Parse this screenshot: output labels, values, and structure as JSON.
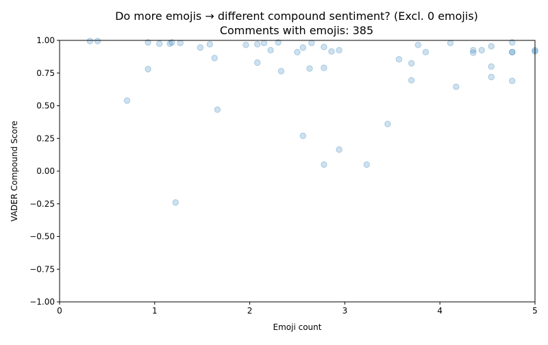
{
  "chart_data": {
    "type": "scatter",
    "title": "Do more emojis → different compound sentiment? (Excl. 0 emojis)",
    "subtitle": "Comments with emojis: 385",
    "xlabel": "Emoji count",
    "ylabel": "VADER Compound Score",
    "xlim": [
      0,
      5
    ],
    "ylim": [
      -1.0,
      1.0
    ],
    "grid": false,
    "x_ticks": [
      "0",
      "1",
      "2",
      "3",
      "4",
      "5"
    ],
    "y_ticks": [
      "−1.00",
      "−0.75",
      "−0.50",
      "−0.25",
      "0.00",
      "0.25",
      "0.50",
      "0.75",
      "1.00"
    ],
    "point_color": "#1f77b4",
    "points": [
      [
        0.32,
        0.995
      ],
      [
        0.4,
        0.995
      ],
      [
        0.71,
        0.54
      ],
      [
        0.93,
        0.985
      ],
      [
        0.93,
        0.78
      ],
      [
        1.05,
        0.975
      ],
      [
        1.16,
        0.975
      ],
      [
        1.18,
        0.985
      ],
      [
        1.22,
        -0.24
      ],
      [
        1.27,
        0.98
      ],
      [
        1.48,
        0.945
      ],
      [
        1.58,
        0.97
      ],
      [
        1.63,
        0.865
      ],
      [
        1.66,
        0.47
      ],
      [
        1.96,
        0.965
      ],
      [
        2.08,
        0.97
      ],
      [
        2.08,
        0.83
      ],
      [
        2.15,
        0.98
      ],
      [
        2.22,
        0.925
      ],
      [
        2.3,
        0.985
      ],
      [
        2.33,
        0.765
      ],
      [
        2.5,
        0.91
      ],
      [
        2.56,
        0.945
      ],
      [
        2.56,
        0.27
      ],
      [
        2.63,
        0.785
      ],
      [
        2.65,
        0.98
      ],
      [
        2.78,
        0.95
      ],
      [
        2.78,
        0.79
      ],
      [
        2.78,
        0.05
      ],
      [
        2.86,
        0.915
      ],
      [
        2.94,
        0.925
      ],
      [
        2.94,
        0.165
      ],
      [
        3.23,
        0.05
      ],
      [
        3.45,
        0.36
      ],
      [
        3.57,
        0.855
      ],
      [
        3.7,
        0.825
      ],
      [
        3.7,
        0.695
      ],
      [
        3.77,
        0.965
      ],
      [
        3.85,
        0.91
      ],
      [
        4.11,
        0.98
      ],
      [
        4.17,
        0.645
      ],
      [
        4.35,
        0.925
      ],
      [
        4.35,
        0.905
      ],
      [
        4.44,
        0.925
      ],
      [
        4.54,
        0.955
      ],
      [
        4.54,
        0.8
      ],
      [
        4.54,
        0.72
      ],
      [
        4.76,
        0.985
      ],
      [
        4.76,
        0.91
      ],
      [
        4.76,
        0.91
      ],
      [
        4.76,
        0.69
      ],
      [
        5.0,
        0.915
      ],
      [
        5.0,
        0.925
      ]
    ]
  }
}
